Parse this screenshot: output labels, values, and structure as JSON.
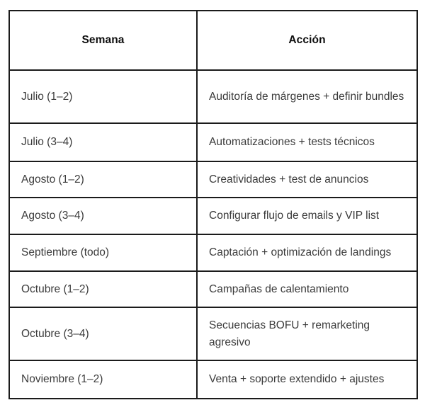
{
  "colors": {
    "background": "#ffffff",
    "border": "#1b1b1b",
    "header_text": "#0e0e0e",
    "body_text": "#3b3b3b"
  },
  "chart_data": {
    "type": "table",
    "title": "",
    "columns": [
      "Semana",
      "Acción"
    ],
    "rows": [
      [
        "Julio (1–2)",
        "Auditoría de márgenes + definir bundles"
      ],
      [
        "Julio (3–4)",
        "Automatizaciones + tests técnicos"
      ],
      [
        "Agosto (1–2)",
        "Creatividades + test de anuncios"
      ],
      [
        "Agosto (3–4)",
        "Configurar flujo de emails y VIP list"
      ],
      [
        "Septiembre (todo)",
        "Captación + optimización de landings"
      ],
      [
        "Octubre (1–2)",
        "Campañas de calentamiento"
      ],
      [
        "Octubre (3–4)",
        "Secuencias BOFU + remarketing agresivo"
      ],
      [
        "Noviembre (1–2)",
        "Venta + soporte extendido + ajustes"
      ]
    ]
  }
}
